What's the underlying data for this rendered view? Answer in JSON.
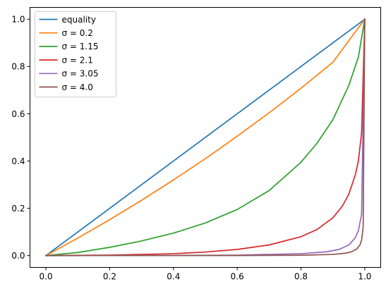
{
  "chart_data": {
    "type": "line",
    "title": "",
    "xlabel": "",
    "ylabel": "",
    "xlim": [
      -0.05,
      1.05
    ],
    "ylim": [
      -0.05,
      1.05
    ],
    "xticks": [
      "0.0",
      "0.2",
      "0.4",
      "0.6",
      "0.8",
      "1.0"
    ],
    "yticks": [
      "0.0",
      "0.2",
      "0.4",
      "0.6",
      "0.8",
      "1.0"
    ],
    "grid": false,
    "legend_position": "upper-left",
    "series": [
      {
        "name": "equality",
        "color": "#1f77b4",
        "x": [
          0,
          0.2,
          0.4,
          0.6,
          0.8,
          1.0
        ],
        "y": [
          0,
          0.2,
          0.4,
          0.6,
          0.8,
          1.0
        ]
      },
      {
        "name": "σ = 0.2",
        "color": "#ff7f0e",
        "x": [
          0,
          0.1,
          0.2,
          0.3,
          0.4,
          0.5,
          0.6,
          0.7,
          0.8,
          0.9,
          1.0
        ],
        "y": [
          0,
          0.074,
          0.152,
          0.234,
          0.32,
          0.41,
          0.505,
          0.604,
          0.708,
          0.818,
          1.0
        ]
      },
      {
        "name": "σ = 1.15",
        "color": "#2ca02c",
        "x": [
          0,
          0.1,
          0.2,
          0.3,
          0.4,
          0.5,
          0.6,
          0.7,
          0.8,
          0.85,
          0.9,
          0.95,
          0.98,
          1.0
        ],
        "y": [
          0,
          0.013,
          0.035,
          0.062,
          0.095,
          0.138,
          0.195,
          0.275,
          0.395,
          0.475,
          0.575,
          0.72,
          0.84,
          1.0
        ]
      },
      {
        "name": "σ = 2.1",
        "color": "#d62728",
        "x": [
          0,
          0.2,
          0.4,
          0.5,
          0.6,
          0.7,
          0.8,
          0.85,
          0.9,
          0.93,
          0.95,
          0.97,
          0.98,
          0.99,
          1.0
        ],
        "y": [
          0,
          0.002,
          0.008,
          0.015,
          0.026,
          0.045,
          0.08,
          0.11,
          0.16,
          0.21,
          0.26,
          0.34,
          0.4,
          0.52,
          1.0
        ]
      },
      {
        "name": "σ = 3.05",
        "color": "#9467bd",
        "x": [
          0,
          0.4,
          0.6,
          0.8,
          0.88,
          0.92,
          0.95,
          0.97,
          0.98,
          0.99,
          1.0
        ],
        "y": [
          0,
          0.0005,
          0.002,
          0.008,
          0.016,
          0.026,
          0.045,
          0.075,
          0.105,
          0.175,
          1.0
        ]
      },
      {
        "name": "σ = 4.0",
        "color": "#8c564b",
        "x": [
          0,
          0.6,
          0.8,
          0.9,
          0.94,
          0.96,
          0.975,
          0.985,
          0.99,
          0.995,
          1.0
        ],
        "y": [
          0,
          0.0003,
          0.0015,
          0.005,
          0.01,
          0.017,
          0.028,
          0.045,
          0.065,
          0.12,
          1.0
        ]
      }
    ]
  }
}
